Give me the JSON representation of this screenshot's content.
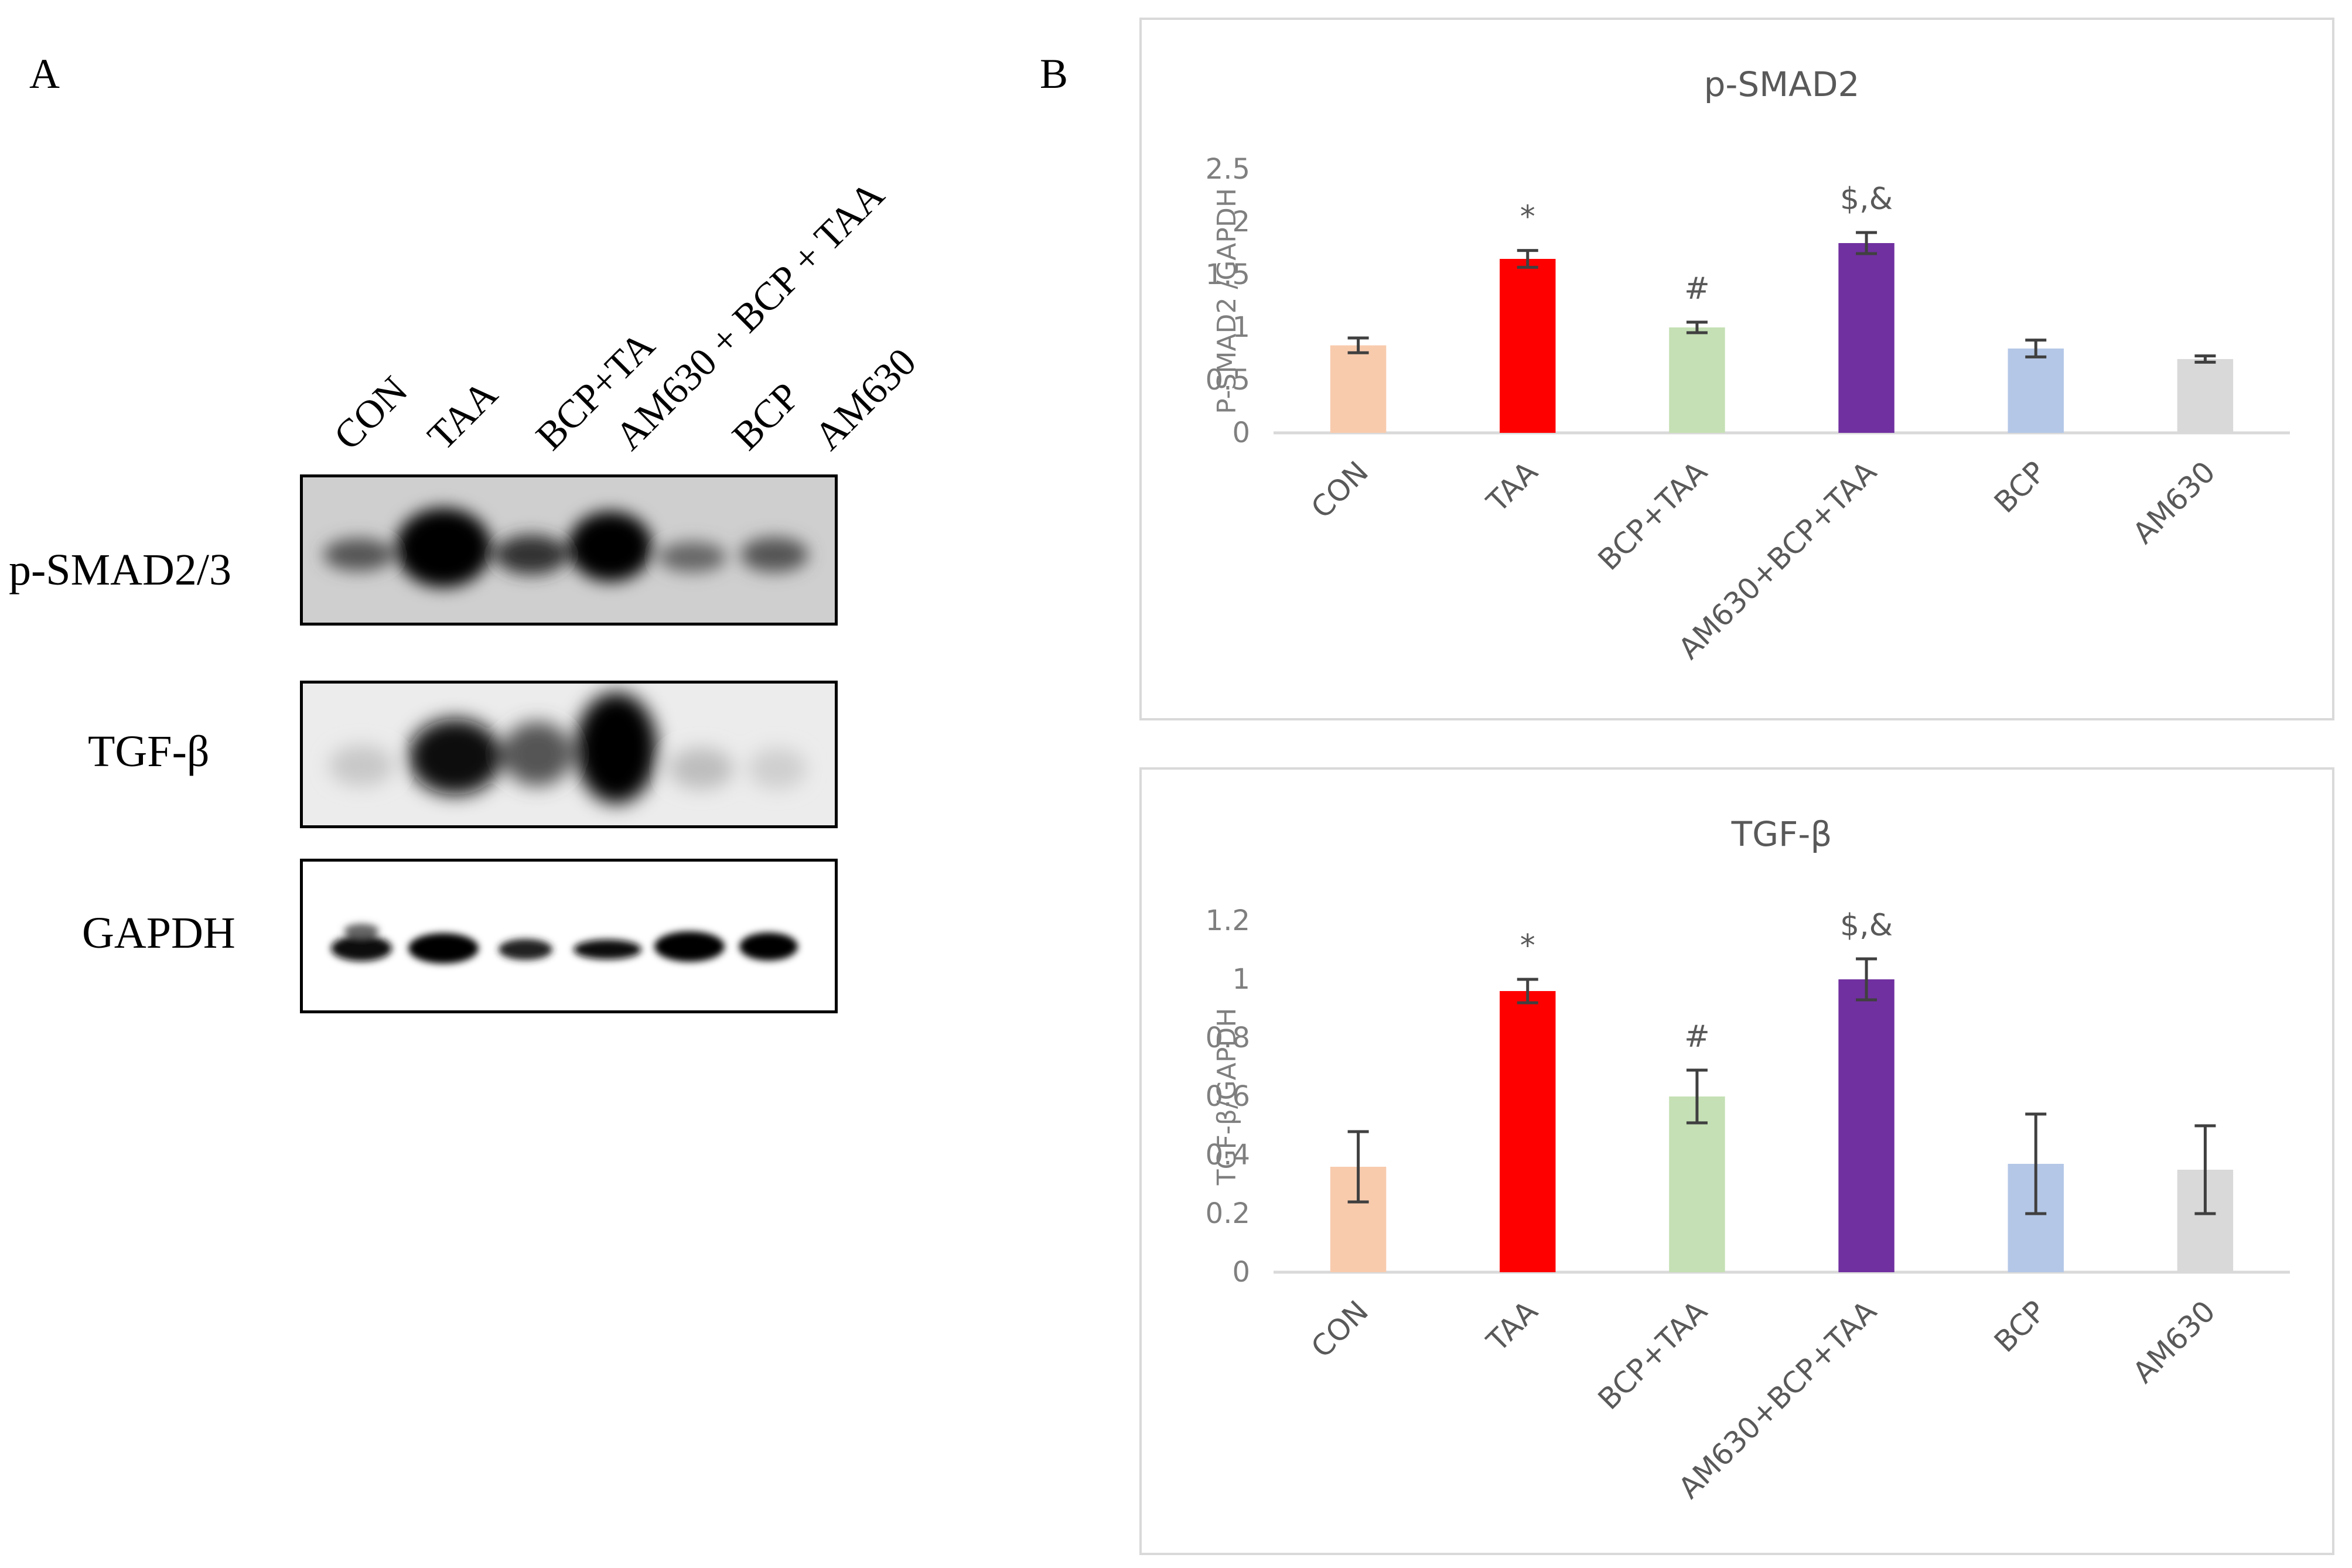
{
  "panels": {
    "a_label": "A",
    "b_label": "B"
  },
  "blot": {
    "lanes": [
      "CON",
      "TAA",
      "BCP+TA",
      "AM630 + BCP + TAA",
      "BCP",
      "AM630"
    ],
    "rows": [
      {
        "label": "p-SMAD2/3",
        "intensities": [
          0.45,
          1.0,
          0.55,
          0.95,
          0.4,
          0.5
        ]
      },
      {
        "label": "TGF-β",
        "intensities": [
          0.15,
          0.85,
          0.55,
          1.0,
          0.15,
          0.12
        ]
      },
      {
        "label": "GAPDH",
        "intensities": [
          0.8,
          0.85,
          0.65,
          0.7,
          0.85,
          0.8
        ]
      }
    ]
  },
  "colors": {
    "CON": "#f8cbad",
    "TAA": "#ff0000",
    "BCP+TAA": "#c5e0b4",
    "AM630+BCP+TAA": "#7030a0",
    "BCP": "#b4c7e7",
    "AM630": "#d9d9d9",
    "axis_text": "#7f7f7f",
    "error_bar": "#404040"
  },
  "chart_data": [
    {
      "type": "bar",
      "title": "p-SMAD2",
      "ylabel": "P-SMAD2 /GAPDH",
      "xlabel": "",
      "categories": [
        "CON",
        "TAA",
        "BCP+TAA",
        "AM630+BCP+TAA",
        "BCP",
        "AM630"
      ],
      "values": [
        0.83,
        1.65,
        1.0,
        1.8,
        0.8,
        0.7
      ],
      "errors": [
        0.07,
        0.08,
        0.05,
        0.1,
        0.08,
        0.03
      ],
      "annotations": [
        "",
        "*",
        "#",
        "$,&",
        "",
        ""
      ],
      "ylim": [
        0,
        2.5
      ],
      "yticks": [
        0,
        0.5,
        1,
        1.5,
        2,
        2.5
      ],
      "ytick_labels": [
        "0",
        "0.5",
        "1",
        "1.5",
        "2",
        "2.5"
      ]
    },
    {
      "type": "bar",
      "title": "TGF-β",
      "ylabel": "TGF-β/GAPDH",
      "xlabel": "",
      "categories": [
        "CON",
        "TAA",
        "BCP+TAA",
        "AM630+BCP+TAA",
        "BCP",
        "AM630"
      ],
      "values": [
        0.36,
        0.96,
        0.6,
        1.0,
        0.37,
        0.35
      ],
      "errors": [
        0.12,
        0.04,
        0.09,
        0.07,
        0.17,
        0.15
      ],
      "annotations": [
        "",
        "*",
        "#",
        "$,&",
        "",
        ""
      ],
      "ylim": [
        0,
        1.2
      ],
      "yticks": [
        0,
        0.2,
        0.4,
        0.6,
        0.8,
        1,
        1.2
      ],
      "ytick_labels": [
        "0",
        "0.2",
        "0.4",
        "0.6",
        "0.8",
        "1",
        "1.2"
      ]
    }
  ]
}
